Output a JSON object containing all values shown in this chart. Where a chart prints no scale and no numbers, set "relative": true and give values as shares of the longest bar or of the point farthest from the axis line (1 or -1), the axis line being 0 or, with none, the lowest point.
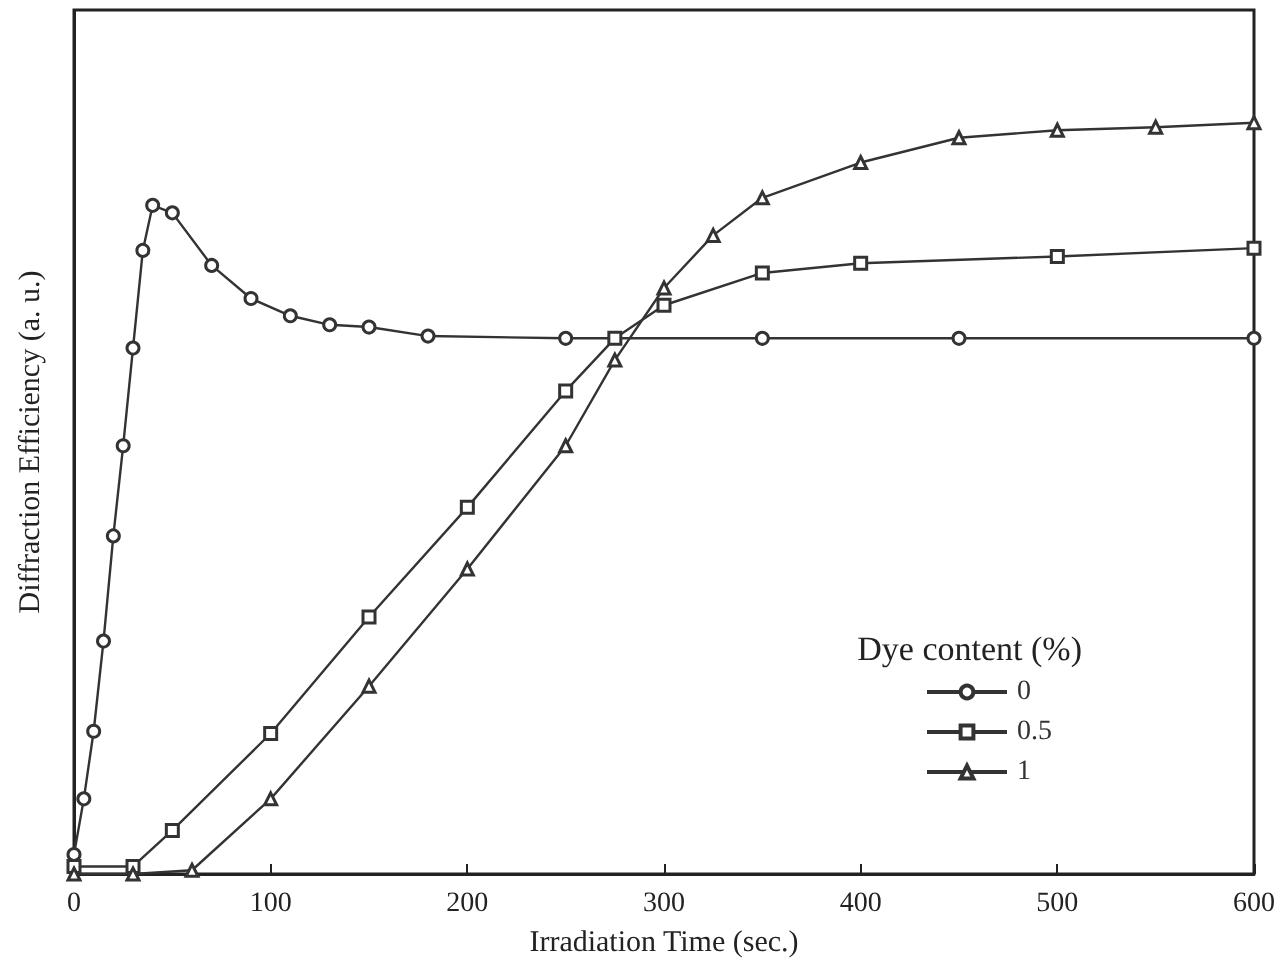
{
  "chart_data": {
    "type": "line",
    "relative": true,
    "xlabel": "Irradiation Time (sec.)",
    "ylabel": "Diffraction Efficiency (a. u.)",
    "legend_title": "Dye content (%)",
    "legend": "bottom right",
    "grid": false,
    "xlim": [
      0,
      600
    ],
    "xticks": [
      0,
      100,
      200,
      300,
      400,
      500,
      600
    ],
    "series": [
      {
        "name": "0",
        "color": "#333333",
        "marker": "circle",
        "x": [
          0,
          5,
          10,
          15,
          20,
          25,
          30,
          35,
          40,
          50,
          70,
          90,
          110,
          130,
          150,
          180,
          250,
          350,
          450,
          600
        ],
        "values": [
          0.026,
          0.1,
          0.19,
          0.31,
          0.45,
          0.57,
          0.7,
          0.83,
          0.89,
          0.88,
          0.81,
          0.766,
          0.743,
          0.731,
          0.728,
          0.716,
          0.713,
          0.713,
          0.713,
          0.713
        ]
      },
      {
        "name": "0.5",
        "color": "#333333",
        "marker": "square",
        "x": [
          0,
          30,
          50,
          100,
          150,
          200,
          250,
          275,
          300,
          350,
          400,
          500,
          600
        ],
        "values": [
          0.01,
          0.01,
          0.058,
          0.187,
          0.342,
          0.488,
          0.643,
          0.713,
          0.757,
          0.8,
          0.813,
          0.822,
          0.833
        ]
      },
      {
        "name": "1",
        "color": "#333333",
        "marker": "triangle",
        "x": [
          0,
          30,
          60,
          100,
          150,
          200,
          250,
          275,
          300,
          325,
          350,
          400,
          450,
          500,
          550,
          600
        ],
        "values": [
          0,
          0,
          0.005,
          0.1,
          0.25,
          0.406,
          0.57,
          0.684,
          0.78,
          0.85,
          0.9,
          0.947,
          0.98,
          0.99,
          0.994,
          1
        ]
      }
    ]
  }
}
